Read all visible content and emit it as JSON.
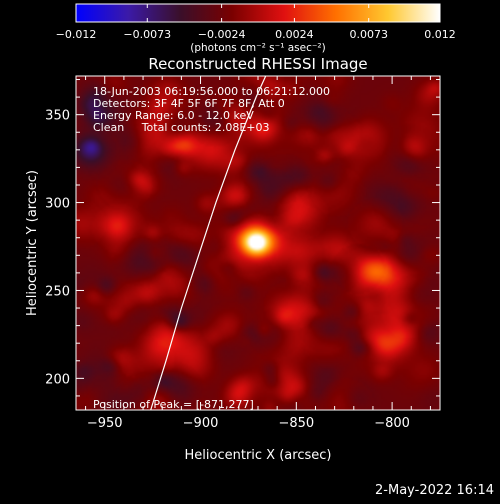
{
  "colorbar": {
    "tick_labels": [
      "−0.012",
      "−0.0073",
      "−0.0024",
      "0.0024",
      "0.0073",
      "0.012"
    ],
    "tick_values": [
      -0.012,
      -0.0073,
      -0.0024,
      0.0024,
      0.0073,
      0.012
    ],
    "range": [
      -0.012,
      0.012
    ],
    "unit_label": "(photons cm⁻² s⁻¹ asec⁻²)",
    "colors": [
      "#0000ff",
      "#3b1aa8",
      "#3a0f2a",
      "#7a0000",
      "#e01010",
      "#ff7000",
      "#ffc830",
      "#ffffff"
    ]
  },
  "footer": {
    "date": "2-May-2022 16:14"
  },
  "chart_data": {
    "type": "heatmap",
    "title": "Reconstructed RHESSI Image",
    "xlabel": "Heliocentric X (arcsec)",
    "ylabel": "Heliocentric Y (arcsec)",
    "xlim": [
      -965,
      -775
    ],
    "ylim": [
      182,
      372
    ],
    "x_ticks": [
      -950,
      -900,
      -850,
      -800
    ],
    "x_tick_labels": [
      "−950",
      "−900",
      "−850",
      "−800"
    ],
    "y_ticks": [
      200,
      250,
      300,
      350
    ],
    "y_tick_labels": [
      "200",
      "250",
      "300",
      "350"
    ],
    "annotations": [
      "18-Jun-2003 06:19:56.000 to 06:21:12.000",
      "Detectors: 3F 4F 5F 6F 7F 8F, Att 0",
      "Energy Range: 6.0 - 12.0 keV",
      "Clean     Total counts: 2.08E+03"
    ],
    "peak_label": "Position of Peak = [-871,277]",
    "peak_position": [
      -871,
      277
    ],
    "limb_curve": [
      [
        -926,
        182
      ],
      [
        -918,
        210
      ],
      [
        -910,
        240
      ],
      [
        -901,
        270
      ],
      [
        -892,
        300
      ],
      [
        -882,
        330
      ],
      [
        -871,
        360
      ],
      [
        -866,
        372
      ]
    ],
    "sources": [
      {
        "x": -871,
        "y": 277,
        "peak": 0.012,
        "sigma": 5
      },
      {
        "x": -870,
        "y": 280,
        "peak": 0.006,
        "sigma": 11
      },
      {
        "x": -885,
        "y": 262,
        "peak": 0.003,
        "sigma": 8
      },
      {
        "x": -808,
        "y": 262,
        "peak": 0.005,
        "sigma": 8
      },
      {
        "x": -800,
        "y": 252,
        "peak": 0.003,
        "sigma": 12
      },
      {
        "x": -805,
        "y": 218,
        "peak": 0.0045,
        "sigma": 7
      },
      {
        "x": -798,
        "y": 230,
        "peak": 0.002,
        "sigma": 10
      },
      {
        "x": -872,
        "y": 348,
        "peak": 0.003,
        "sigma": 11
      },
      {
        "x": -895,
        "y": 330,
        "peak": 0.0035,
        "sigma": 8
      },
      {
        "x": -925,
        "y": 345,
        "peak": 0.003,
        "sigma": 9
      },
      {
        "x": -920,
        "y": 220,
        "peak": 0.0035,
        "sigma": 7
      },
      {
        "x": -905,
        "y": 215,
        "peak": 0.003,
        "sigma": 9
      },
      {
        "x": -945,
        "y": 290,
        "peak": 0.002,
        "sigma": 10
      },
      {
        "x": -845,
        "y": 305,
        "peak": 0.0025,
        "sigma": 10
      },
      {
        "x": -850,
        "y": 230,
        "peak": 0.0025,
        "sigma": 12
      },
      {
        "x": -830,
        "y": 270,
        "peak": 0.002,
        "sigma": 10
      },
      {
        "x": -815,
        "y": 335,
        "peak": 0.003,
        "sigma": 8
      },
      {
        "x": -790,
        "y": 300,
        "peak": 0.002,
        "sigma": 8
      },
      {
        "x": -860,
        "y": 200,
        "peak": 0.0025,
        "sigma": 8
      },
      {
        "x": -940,
        "y": 200,
        "peak": 0.002,
        "sigma": 8
      },
      {
        "x": -785,
        "y": 345,
        "peak": 0.0015,
        "sigma": 8
      },
      {
        "x": -935,
        "y": 245,
        "peak": 0.0015,
        "sigma": 8
      }
    ],
    "background_level": -0.0025,
    "noise_amplitude": 0.0035
  }
}
